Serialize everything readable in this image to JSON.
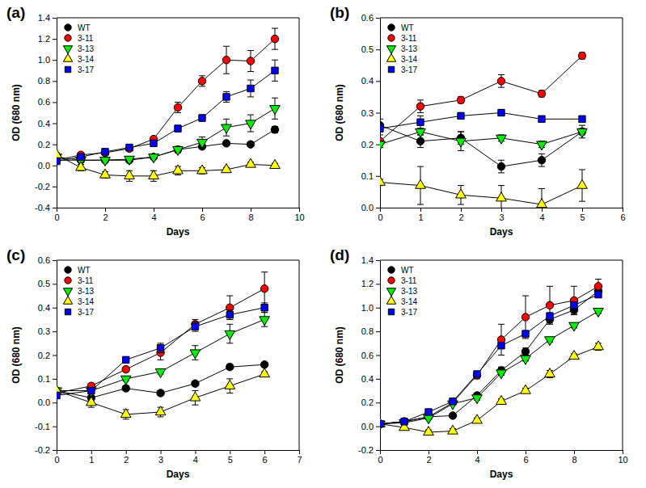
{
  "chart_data": [
    {
      "type": "line",
      "title": "(a)",
      "x_label": "Days",
      "y_label": "OD (680 nm)",
      "x": [
        0,
        1,
        2,
        3,
        4,
        5,
        6,
        7,
        8,
        9
      ],
      "xlim": [
        0,
        10
      ],
      "xticks": [
        0,
        2,
        4,
        6,
        8,
        10
      ],
      "ylim": [
        -0.4,
        1.4
      ],
      "yticks": [
        -0.4,
        -0.2,
        {
          "value": 0,
          "label": "0.0"
        },
        0.2,
        0.4,
        0.6,
        0.8,
        {
          "value": 1,
          "label": "1.0"
        },
        1.2,
        1.4
      ],
      "legend": "upper left",
      "series": [
        {
          "name": "WT",
          "color": "#000000",
          "marker": "circle",
          "values": [
            0.05,
            0.05,
            0.05,
            0.05,
            0.08,
            0.15,
            0.18,
            0.21,
            0.2,
            0.34
          ],
          "errors": [
            0.01,
            0.01,
            0.01,
            0.01,
            0.01,
            0.02,
            0.02,
            0.02,
            0.02,
            0.03
          ]
        },
        {
          "name": "3-11",
          "color": "#ff0000",
          "marker": "circle",
          "values": [
            0.05,
            0.1,
            0.12,
            0.16,
            0.25,
            0.55,
            0.8,
            1.0,
            0.99,
            1.2
          ],
          "errors": [
            0.01,
            0.01,
            0.02,
            0.02,
            0.02,
            0.05,
            0.05,
            0.13,
            0.1,
            0.1
          ]
        },
        {
          "name": "3-13",
          "color": "#00ee00",
          "marker": "triangle-down",
          "values": [
            0.08,
            0.05,
            0.05,
            0.06,
            0.08,
            0.15,
            0.22,
            0.36,
            0.4,
            0.54
          ],
          "errors": [
            0.02,
            0.01,
            0.01,
            0.01,
            0.01,
            0.03,
            0.05,
            0.08,
            0.08,
            0.1
          ]
        },
        {
          "name": "3-14",
          "color": "#ffff00",
          "marker": "triangle-up",
          "values": [
            0.1,
            -0.02,
            -0.09,
            -0.1,
            -0.1,
            -0.05,
            -0.05,
            -0.04,
            0.01,
            0.0
          ],
          "errors": [
            0.02,
            0.03,
            0.03,
            0.05,
            0.05,
            0.04,
            0.03,
            0.02,
            0.02,
            0.02
          ]
        },
        {
          "name": "3-17",
          "color": "#0000ff",
          "marker": "square",
          "values": [
            0.04,
            0.08,
            0.13,
            0.17,
            0.21,
            0.35,
            0.45,
            0.65,
            0.73,
            0.9
          ],
          "errors": [
            0.01,
            0.01,
            0.02,
            0.02,
            0.02,
            0.03,
            0.03,
            0.05,
            0.08,
            0.1
          ]
        }
      ]
    },
    {
      "type": "line",
      "title": "(b)",
      "x_label": "Days",
      "y_label": "OD (680 nm)",
      "x": [
        0,
        1,
        2,
        3,
        4,
        5
      ],
      "xlim": [
        0,
        6
      ],
      "xticks": [
        0,
        1,
        2,
        3,
        4,
        5,
        6
      ],
      "ylim": [
        0,
        0.6
      ],
      "yticks": [
        {
          "value": 0,
          "label": "0.0"
        },
        0.1,
        0.2,
        0.3,
        0.4,
        0.5,
        0.6
      ],
      "legend": "upper left",
      "series": [
        {
          "name": "WT",
          "color": "#000000",
          "marker": "circle",
          "values": [
            0.26,
            0.21,
            0.22,
            0.13,
            0.15,
            0.24
          ],
          "errors": [
            0.02,
            0.02,
            0.02,
            0.02,
            0.02,
            0.01
          ]
        },
        {
          "name": "3-11",
          "color": "#ff0000",
          "marker": "circle",
          "values": [
            0.21,
            0.32,
            0.34,
            0.4,
            0.36,
            0.48
          ],
          "errors": [
            0.02,
            0.02,
            0.01,
            0.02,
            0.01,
            0.01
          ]
        },
        {
          "name": "3-13",
          "color": "#00ee00",
          "marker": "triangle-down",
          "values": [
            0.2,
            0.24,
            0.21,
            0.22,
            0.2,
            0.24
          ],
          "errors": [
            0.01,
            0.01,
            0.03,
            0.01,
            0.01,
            0.02
          ]
        },
        {
          "name": "3-14",
          "color": "#ffff00",
          "marker": "triangle-up",
          "values": [
            0.08,
            0.07,
            0.04,
            0.03,
            0.01,
            0.07
          ],
          "errors": [
            0.01,
            0.06,
            0.03,
            0.04,
            0.05,
            0.05
          ]
        },
        {
          "name": "3-17",
          "color": "#0000ff",
          "marker": "square",
          "values": [
            0.25,
            0.27,
            0.29,
            0.3,
            0.28,
            0.28
          ],
          "errors": [
            0.01,
            0.02,
            0.01,
            0.01,
            0.01,
            0.01
          ]
        }
      ]
    },
    {
      "type": "line",
      "title": "(c)",
      "x_label": "Days",
      "y_label": "OD (680 nm)",
      "x": [
        0,
        1,
        2,
        3,
        4,
        5,
        6
      ],
      "xlim": [
        0,
        7
      ],
      "xticks": [
        0,
        1,
        2,
        3,
        4,
        5,
        6,
        7
      ],
      "ylim": [
        -0.2,
        0.6
      ],
      "yticks": [
        -0.2,
        -0.1,
        {
          "value": 0,
          "label": "0.0"
        },
        0.1,
        0.2,
        0.3,
        0.4,
        0.5,
        0.6
      ],
      "legend": "upper left",
      "series": [
        {
          "name": "WT",
          "color": "#000000",
          "marker": "circle",
          "values": [
            0.05,
            0.02,
            0.06,
            0.04,
            0.08,
            0.15,
            0.16
          ],
          "errors": [
            0.01,
            0.01,
            0.01,
            0.01,
            0.01,
            0.01,
            0.01
          ]
        },
        {
          "name": "3-11",
          "color": "#ff0000",
          "marker": "circle",
          "values": [
            0.04,
            0.07,
            0.14,
            0.21,
            0.33,
            0.4,
            0.48
          ],
          "errors": [
            0.01,
            0.01,
            0.01,
            0.03,
            0.02,
            0.05,
            0.07
          ]
        },
        {
          "name": "3-13",
          "color": "#00ee00",
          "marker": "triangle-down",
          "values": [
            0.05,
            0.05,
            0.1,
            0.13,
            0.21,
            0.29,
            0.35
          ],
          "errors": [
            0.01,
            0.01,
            0.01,
            0.01,
            0.03,
            0.04,
            0.03
          ]
        },
        {
          "name": "3-14",
          "color": "#ffff00",
          "marker": "triangle-up",
          "values": [
            0.05,
            0.0,
            -0.05,
            -0.04,
            0.02,
            0.07,
            0.12
          ],
          "errors": [
            0.01,
            0.02,
            0.02,
            0.02,
            0.03,
            0.03,
            0.01
          ]
        },
        {
          "name": "3-17",
          "color": "#0000ff",
          "marker": "square",
          "values": [
            0.03,
            0.05,
            0.18,
            0.23,
            0.32,
            0.37,
            0.4
          ],
          "errors": [
            0.01,
            0.01,
            0.01,
            0.02,
            0.02,
            0.02,
            0.02
          ]
        }
      ]
    },
    {
      "type": "line",
      "title": "(d)",
      "x_label": "Days",
      "y_label": "OD (680 nm)",
      "x": [
        0,
        1,
        2,
        3,
        4,
        5,
        6,
        7,
        8,
        9
      ],
      "xlim": [
        0,
        10
      ],
      "xticks": [
        0,
        2,
        4,
        6,
        8,
        10
      ],
      "ylim": [
        -0.2,
        1.4
      ],
      "yticks": [
        -0.2,
        {
          "value": 0,
          "label": "0.0"
        },
        0.2,
        0.4,
        0.6,
        0.8,
        {
          "value": 1,
          "label": "1.0"
        },
        1.2,
        1.4
      ],
      "legend": "upper left",
      "series": [
        {
          "name": "WT",
          "color": "#000000",
          "marker": "circle",
          "values": [
            0.02,
            0.04,
            0.08,
            0.09,
            0.26,
            0.47,
            0.63,
            0.9,
            0.98,
            1.14
          ],
          "errors": [
            0.01,
            0.01,
            0.01,
            0.01,
            0.02,
            0.03,
            0.03,
            0.03,
            0.03,
            0.03
          ]
        },
        {
          "name": "3-11",
          "color": "#ff0000",
          "marker": "circle",
          "values": [
            0.02,
            0.04,
            0.08,
            0.2,
            0.43,
            0.73,
            0.92,
            1.02,
            1.06,
            1.18
          ],
          "errors": [
            0.01,
            0.01,
            0.01,
            0.02,
            0.03,
            0.13,
            0.18,
            0.16,
            0.12,
            0.06
          ]
        },
        {
          "name": "3-13",
          "color": "#00ee00",
          "marker": "triangle-down",
          "values": [
            0.02,
            0.03,
            0.07,
            0.19,
            0.24,
            0.45,
            0.57,
            0.73,
            0.85,
            0.97
          ],
          "errors": [
            0.01,
            0.01,
            0.01,
            0.01,
            0.02,
            0.02,
            0.02,
            0.02,
            0.02,
            0.02
          ]
        },
        {
          "name": "3-14",
          "color": "#ffff00",
          "marker": "triangle-up",
          "values": [
            0.02,
            -0.01,
            -0.05,
            -0.04,
            0.05,
            0.21,
            0.3,
            0.44,
            0.59,
            0.67
          ],
          "errors": [
            0.01,
            0.02,
            0.02,
            0.02,
            0.02,
            0.02,
            0.02,
            0.03,
            0.02,
            0.03
          ]
        },
        {
          "name": "3-17",
          "color": "#0000ff",
          "marker": "square",
          "values": [
            0.02,
            0.04,
            0.12,
            0.21,
            0.44,
            0.68,
            0.78,
            0.93,
            1.02,
            1.11
          ],
          "errors": [
            0.01,
            0.01,
            0.01,
            0.02,
            0.02,
            0.02,
            0.02,
            0.02,
            0.02,
            0.02
          ]
        }
      ]
    }
  ]
}
